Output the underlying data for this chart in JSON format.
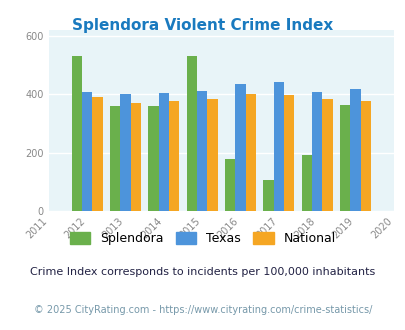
{
  "title": "Splendora Violent Crime Index",
  "title_color": "#1a7abf",
  "years": [
    2011,
    2012,
    2013,
    2014,
    2015,
    2016,
    2017,
    2018,
    2019,
    2020
  ],
  "data_years": [
    2012,
    2013,
    2014,
    2015,
    2016,
    2017,
    2018,
    2019
  ],
  "splendora": [
    530,
    360,
    358,
    530,
    180,
    105,
    192,
    362
  ],
  "texas": [
    408,
    400,
    405,
    410,
    435,
    440,
    408,
    418
  ],
  "national": [
    390,
    368,
    375,
    384,
    400,
    397,
    384,
    378
  ],
  "splendora_color": "#6ab04c",
  "texas_color": "#4d94db",
  "national_color": "#f5a623",
  "bg_color": "#e8f4f8",
  "ylim": [
    0,
    620
  ],
  "yticks": [
    0,
    200,
    400,
    600
  ],
  "legend_labels": [
    "Splendora",
    "Texas",
    "National"
  ],
  "footnote1": "Crime Index corresponds to incidents per 100,000 inhabitants",
  "footnote2": "© 2025 CityRating.com - https://www.cityrating.com/crime-statistics/",
  "footnote1_color": "#222244",
  "footnote2_color": "#7799aa",
  "bar_width": 0.27
}
